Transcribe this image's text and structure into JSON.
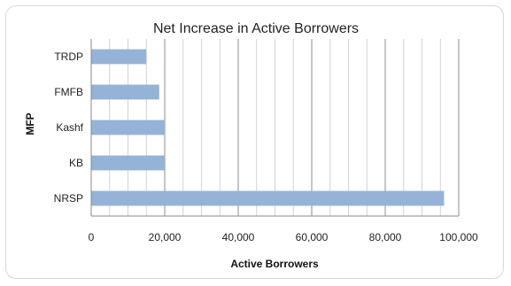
{
  "chart_data": {
    "type": "bar",
    "orientation": "horizontal",
    "title": "Net Increase in Active Borrowers",
    "xlabel": "Active Borrowers",
    "ylabel": "MFP",
    "categories": [
      "TRDP",
      "FMFB",
      "Kashf",
      "KB",
      "NRSP"
    ],
    "values": [
      15000,
      18500,
      20000,
      20000,
      96000
    ],
    "xlim": [
      0,
      100000
    ],
    "xticks": [
      0,
      20000,
      40000,
      60000,
      80000,
      100000
    ],
    "xtick_labels": [
      "0",
      "20,000",
      "40,000",
      "60,000",
      "80,000",
      "100,000"
    ],
    "grid": "vertical",
    "legend": "none",
    "colors": {
      "bar": "#95b3d7",
      "grid": "#8c8c8c",
      "axis": "#888888"
    }
  }
}
